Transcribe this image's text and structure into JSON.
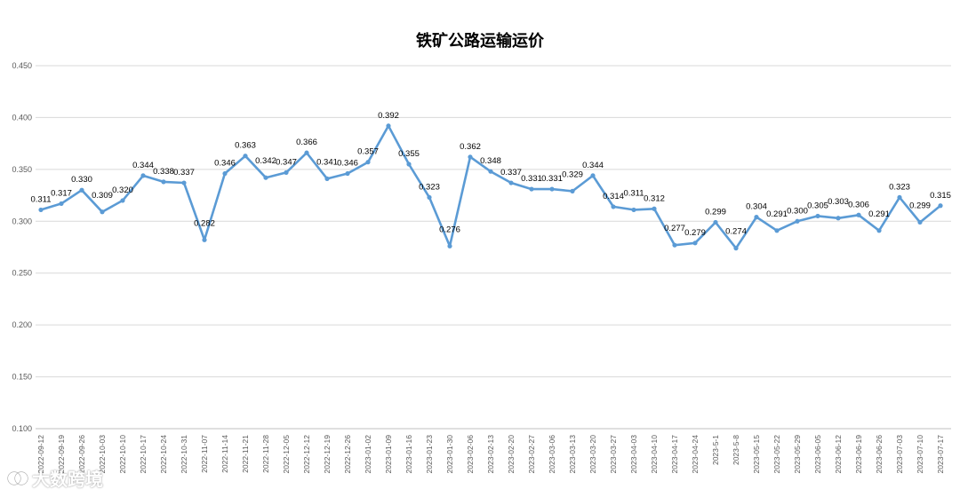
{
  "chart_data": {
    "type": "line",
    "title": "铁矿公路运输运价",
    "xlabel": "",
    "ylabel": "",
    "ylim": [
      0.1,
      0.45
    ],
    "y_ticks": [
      "0.100",
      "0.150",
      "0.200",
      "0.250",
      "0.300",
      "0.350",
      "0.400",
      "0.450"
    ],
    "grid": true,
    "legend": "none",
    "line_color": "#5B9BD5",
    "x": [
      "2022-09-12",
      "2022-09-19",
      "2022-09-26",
      "2022-10-03",
      "2022-10-10",
      "2022-10-17",
      "2022-10-24",
      "2022-10-31",
      "2022-11-07",
      "2022-11-14",
      "2022-11-21",
      "2022-11-28",
      "2022-12-05",
      "2022-12-12",
      "2022-12-19",
      "2022-12-26",
      "2023-01-02",
      "2023-01-09",
      "2023-01-16",
      "2023-01-23",
      "2023-01-30",
      "2023-02-06",
      "2023-02-13",
      "2023-02-20",
      "2023-02-27",
      "2023-03-06",
      "2023-03-13",
      "2023-03-20",
      "2023-03-27",
      "2023-04-03",
      "2023-04-10",
      "2023-04-17",
      "2023-04-24",
      "2023-5-1",
      "2023-5-8",
      "2023-05-15",
      "2023-05-22",
      "2023-05-29",
      "2023-06-05",
      "2023-06-12",
      "2023-06-19",
      "2023-06-26",
      "2023-07-03",
      "2023-07-10",
      "2023-07-17"
    ],
    "values": [
      0.311,
      0.317,
      0.33,
      0.309,
      0.32,
      0.344,
      0.338,
      0.337,
      0.282,
      0.346,
      0.363,
      0.342,
      0.347,
      0.366,
      0.341,
      0.346,
      0.357,
      0.392,
      0.355,
      0.323,
      0.276,
      0.362,
      0.348,
      0.337,
      0.331,
      0.331,
      0.329,
      0.344,
      0.314,
      0.311,
      0.312,
      0.277,
      0.279,
      0.299,
      0.274,
      0.304,
      0.291,
      0.3,
      0.305,
      0.303,
      0.306,
      0.291,
      0.323,
      0.299,
      0.315
    ],
    "labels": [
      "0.311",
      "0.317",
      "0.330",
      "0.309",
      "0.320",
      "0.344",
      "0.338",
      "0.337",
      "0.282",
      "0.346",
      "0.363",
      "0.342",
      "0.347",
      "0.366",
      "0.341",
      "0.346",
      "0.357",
      "0.392",
      "0.355",
      "0.323",
      "0.276",
      "0.362",
      "0.348",
      "0.337",
      "0.331",
      "0.331",
      "0.329",
      "0.344",
      "0.314",
      "0.311",
      "0.312",
      "0.277",
      "0.279",
      "0.299",
      "0.274",
      "0.304",
      "0.291",
      "0.300",
      "0.305",
      "0.303",
      "0.306",
      "0.291",
      "0.323",
      "0.299",
      "0.315"
    ]
  },
  "watermark": {
    "text": "大数跨境",
    "icon": "brand-logo-icon"
  }
}
